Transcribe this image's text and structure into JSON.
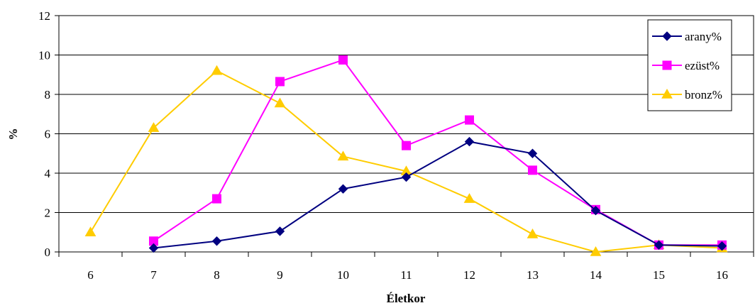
{
  "chart_data": {
    "type": "line",
    "title": "",
    "xlabel": "Életkor",
    "ylabel": "%",
    "categories": [
      "6",
      "7",
      "8",
      "9",
      "10",
      "11",
      "12",
      "13",
      "14",
      "15",
      "16"
    ],
    "ylim": [
      0,
      12
    ],
    "yticks": [
      0,
      2,
      4,
      6,
      8,
      10,
      12
    ],
    "grid": "horizontal",
    "legend": "top-right",
    "series": [
      {
        "name": "arany%",
        "color": "#000080",
        "marker": "diamond",
        "values": [
          null,
          0.2,
          0.55,
          1.05,
          3.2,
          3.8,
          5.6,
          5.0,
          2.1,
          0.35,
          0.3
        ]
      },
      {
        "name": "ezüst%",
        "color": "#FF00FF",
        "marker": "square",
        "values": [
          null,
          0.55,
          2.7,
          8.65,
          9.75,
          5.4,
          6.7,
          4.15,
          2.15,
          0.35,
          0.35
        ]
      },
      {
        "name": "bronz%",
        "color": "#FFCC00",
        "marker": "triangle",
        "values": [
          1.0,
          6.3,
          9.2,
          7.55,
          4.85,
          4.1,
          2.7,
          0.9,
          0.0,
          0.35,
          0.2
        ]
      }
    ]
  }
}
